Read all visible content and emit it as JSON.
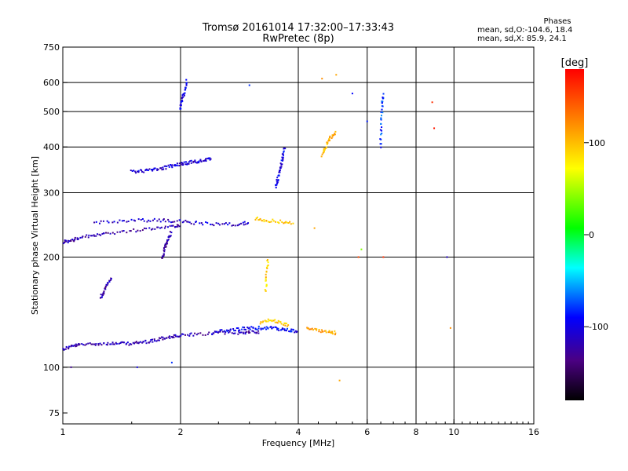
{
  "header": {
    "title": "Tromsø 20161014 17:32:00–17:33:43",
    "subtitle": "RwPretec (8p)"
  },
  "stats": {
    "heading": "Phases",
    "line_o": "mean, sd,O:-104.6, 18.4",
    "line_x": "mean, sd,X: 85.9, 24.1"
  },
  "colorbar": {
    "label": "[deg]",
    "ticks": [
      "100",
      "0",
      "-100"
    ],
    "tick_values": [
      100,
      0,
      -100
    ],
    "range": [
      -180,
      180
    ]
  },
  "chart_data": {
    "type": "scatter",
    "xlabel": "Frequency [MHz]",
    "ylabel": "Stationary phase Virtual Height [km]",
    "xscale": "log",
    "yscale": "log",
    "xlim": [
      1,
      16
    ],
    "ylim": [
      70,
      750
    ],
    "xticks": [
      1,
      2,
      4,
      6,
      8,
      10,
      16
    ],
    "xtick_labels": [
      "1",
      "2",
      "4",
      "6",
      "8",
      "10",
      "16"
    ],
    "yticks": [
      75,
      100,
      200,
      300,
      400,
      500,
      600,
      750
    ],
    "ytick_labels": [
      "75",
      "100",
      "200",
      "300",
      "400",
      "500",
      "600",
      "750"
    ],
    "grid_x": [
      2,
      4,
      6,
      8,
      10
    ],
    "grid_y": [
      100,
      200,
      300,
      400,
      500,
      600
    ],
    "color_field": "phase_deg",
    "traces": [
      {
        "x": [
          1.0,
          1.05,
          1.1,
          1.2,
          1.3,
          1.4,
          1.5,
          1.6,
          1.7,
          1.8,
          1.9,
          2.0,
          2.2,
          2.5,
          2.8,
          3.0,
          3.2
        ],
        "y": [
          112,
          114,
          115,
          116,
          116,
          116,
          116,
          117,
          118,
          120,
          121,
          122,
          123,
          124,
          124,
          125,
          125
        ],
        "phase": -120
      },
      {
        "x": [
          2.4,
          2.6,
          2.8,
          3.0,
          3.2,
          3.4,
          3.6,
          3.8,
          4.0
        ],
        "y": [
          124,
          126,
          127,
          128,
          128,
          128,
          127,
          126,
          125
        ],
        "phase": -95
      },
      {
        "x": [
          3.2,
          3.4,
          3.6,
          3.8
        ],
        "y": [
          132,
          135,
          132,
          130
        ],
        "phase": 100
      },
      {
        "x": [
          4.2,
          4.5,
          4.8,
          5.0
        ],
        "y": [
          128,
          126,
          125,
          124
        ],
        "phase": 110
      },
      {
        "x": [
          1.0,
          1.05,
          1.1,
          1.2,
          1.3,
          1.5,
          1.7,
          1.9,
          2.0
        ],
        "y": [
          220,
          222,
          225,
          230,
          232,
          236,
          240,
          243,
          245
        ],
        "phase": -120
      },
      {
        "x": [
          1.2,
          1.4,
          1.6,
          1.8,
          2.0,
          2.2,
          2.5,
          2.8,
          3.0
        ],
        "y": [
          248,
          250,
          252,
          252,
          250,
          248,
          246,
          246,
          248
        ],
        "phase": -110
      },
      {
        "x": [
          3.1,
          3.3,
          3.6,
          3.9
        ],
        "y": [
          255,
          252,
          250,
          248
        ],
        "phase": 95
      },
      {
        "x": [
          1.5,
          1.6,
          1.7,
          1.8,
          1.9,
          2.0,
          2.1,
          2.2,
          2.3,
          2.4
        ],
        "y": [
          342,
          344,
          346,
          350,
          355,
          360,
          362,
          365,
          368,
          370
        ],
        "phase": -105
      },
      {
        "x": [
          2.0,
          2.02,
          2.05,
          2.08
        ],
        "y": [
          510,
          540,
          570,
          610
        ],
        "phase": -100
      },
      {
        "x": [
          3.5,
          3.55,
          3.6,
          3.65,
          3.7
        ],
        "y": [
          310,
          330,
          350,
          375,
          400
        ],
        "phase": -100
      },
      {
        "x": [
          1.25,
          1.27,
          1.3,
          1.33
        ],
        "y": [
          155,
          160,
          168,
          175
        ],
        "phase": -120
      },
      {
        "x": [
          1.8,
          1.82,
          1.85,
          1.9
        ],
        "y": [
          200,
          210,
          222,
          235
        ],
        "phase": -125
      },
      {
        "x": [
          6.5,
          6.52,
          6.55,
          6.6
        ],
        "y": [
          400,
          460,
          520,
          560
        ],
        "phase": -80
      },
      {
        "x": [
          4.6,
          4.7,
          4.8,
          5.0
        ],
        "y": [
          380,
          400,
          420,
          440
        ],
        "phase": 105
      },
      {
        "x": [
          3.3,
          3.32,
          3.35
        ],
        "y": [
          160,
          180,
          200
        ],
        "phase": 90
      }
    ],
    "isolated_points": [
      {
        "x": 4.6,
        "y": 615,
        "phase": 120
      },
      {
        "x": 5.0,
        "y": 630,
        "phase": 110
      },
      {
        "x": 8.8,
        "y": 530,
        "phase": 160
      },
      {
        "x": 8.9,
        "y": 450,
        "phase": 170
      },
      {
        "x": 6.6,
        "y": 200,
        "phase": 160
      },
      {
        "x": 9.6,
        "y": 200,
        "phase": -110
      },
      {
        "x": 5.1,
        "y": 92,
        "phase": 110
      },
      {
        "x": 1.05,
        "y": 100,
        "phase": -130
      },
      {
        "x": 1.55,
        "y": 100,
        "phase": -100
      },
      {
        "x": 1.9,
        "y": 103,
        "phase": -80
      },
      {
        "x": 3.0,
        "y": 590,
        "phase": -80
      },
      {
        "x": 5.8,
        "y": 210,
        "phase": 40
      },
      {
        "x": 5.7,
        "y": 200,
        "phase": 150
      },
      {
        "x": 9.8,
        "y": 128,
        "phase": 120
      },
      {
        "x": 4.4,
        "y": 240,
        "phase": 110
      },
      {
        "x": 5.5,
        "y": 560,
        "phase": -90
      },
      {
        "x": 6.0,
        "y": 470,
        "phase": -85
      }
    ]
  }
}
